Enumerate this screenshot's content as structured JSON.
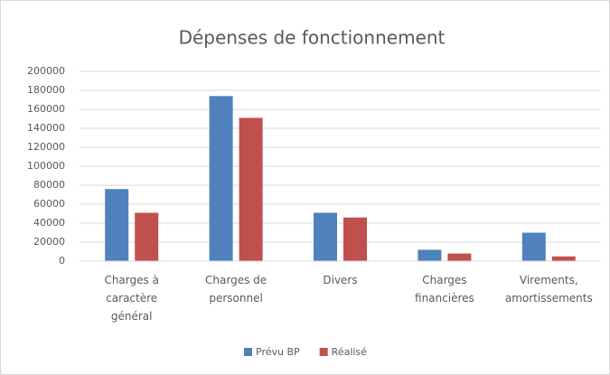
{
  "chart_data": {
    "type": "bar",
    "title": "Dépenses de fonctionnement",
    "categories": [
      "Charges à caractère général",
      "Charges de personnel",
      "Divers",
      "Charges financières",
      "Virements, amortissements"
    ],
    "series": [
      {
        "name": "Prévu BP",
        "color": "#4f81bd",
        "values": [
          76000,
          174000,
          51000,
          12000,
          30000
        ]
      },
      {
        "name": "Réalisé",
        "color": "#c0504d",
        "values": [
          51000,
          151000,
          46000,
          8000,
          5000
        ]
      }
    ],
    "ylim": [
      0,
      200000
    ],
    "yticks": [
      0,
      20000,
      40000,
      60000,
      80000,
      100000,
      120000,
      140000,
      160000,
      180000,
      200000
    ],
    "grid": true,
    "legend": "bottom"
  }
}
